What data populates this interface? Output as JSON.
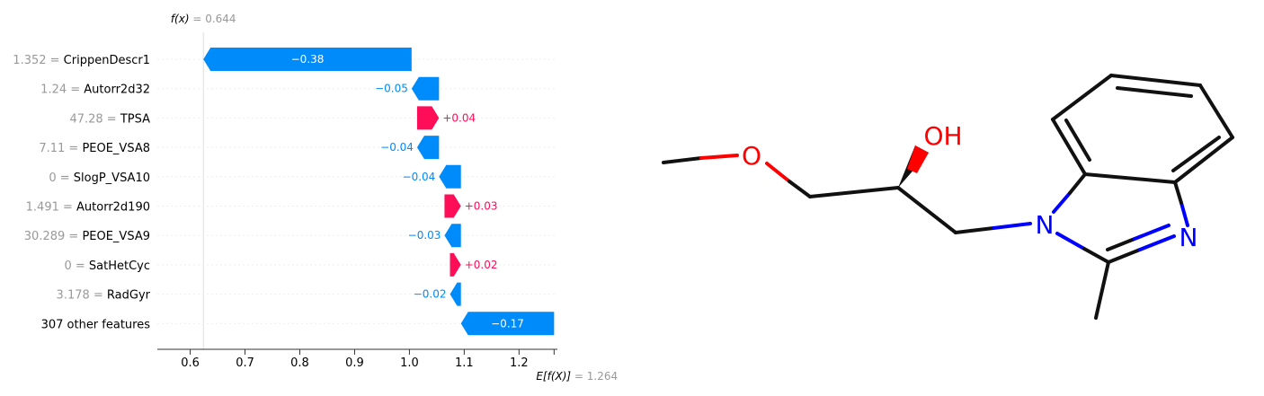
{
  "chart_data": {
    "type": "waterfall",
    "fx_label": "f(x)",
    "fx_value": "0.644",
    "base_label": "E[f(X)]",
    "base_value": "1.264",
    "base": 1.264,
    "features": [
      {
        "value": "1.352",
        "name": "CrippenDescr1",
        "contribution": -0.38,
        "label": "−0.38"
      },
      {
        "value": "1.24",
        "name": "Autorr2d32",
        "contribution": -0.05,
        "label": "−0.05"
      },
      {
        "value": "47.28",
        "name": "TPSA",
        "contribution": 0.04,
        "label": "+0.04"
      },
      {
        "value": "7.11",
        "name": "PEOE_VSA8",
        "contribution": -0.04,
        "label": "−0.04"
      },
      {
        "value": "0",
        "name": "SlogP_VSA10",
        "contribution": -0.04,
        "label": "−0.04"
      },
      {
        "value": "1.491",
        "name": "Autorr2d190",
        "contribution": 0.03,
        "label": "+0.03"
      },
      {
        "value": "30.289",
        "name": "PEOE_VSA9",
        "contribution": -0.03,
        "label": "−0.03"
      },
      {
        "value": "0",
        "name": "SatHetCyc",
        "contribution": 0.02,
        "label": "+0.02"
      },
      {
        "value": "3.178",
        "name": "RadGyr",
        "contribution": -0.02,
        "label": "−0.02"
      },
      {
        "value": "",
        "name": "307 other features",
        "contribution": -0.17,
        "label": "−0.17"
      }
    ],
    "x_ticks": [
      "0.6",
      "0.7",
      "0.8",
      "0.9",
      "1.0",
      "1.1",
      "1.2"
    ],
    "xlim": [
      0.54,
      1.27
    ],
    "colors": {
      "positive": "#ff0d57",
      "negative": "#008bfb"
    }
  },
  "molecule": {
    "atoms": {
      "oxygen_ether": "O",
      "hydroxyl": "OH",
      "nitrogen_1": "N",
      "nitrogen_3": "N"
    },
    "colors": {
      "oxygen": "#ff0000",
      "nitrogen": "#0000ff",
      "carbon": "#111111"
    }
  }
}
